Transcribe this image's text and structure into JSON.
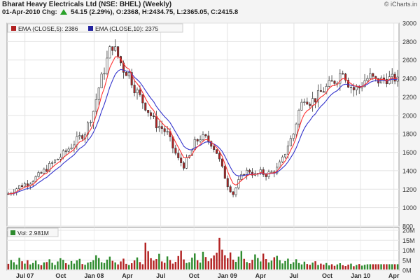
{
  "header": {
    "title": "Bharat Heavy Electricals Ltd (NSE: BHEL) (Weekly)",
    "brand": "© iCharts.in",
    "date_label": "01-Apr-2010 Chg:",
    "change": "54.15 (2.29%),",
    "ohlc": "O:2368, H:2434.75, L:2365.05, C:2415.8"
  },
  "colors": {
    "up_candle": "#ffffff",
    "down_candle": "#b22222",
    "ema5": "#ff3333",
    "ema10": "#3333cc",
    "volume_bar": "#2e8b2e",
    "volume_bar_down": "#b22222",
    "change_arrow": "#2aa12a"
  },
  "chart_data": [
    {
      "type": "candlestick",
      "title": "Bharat Heavy Electricals Ltd (NSE: BHEL) (Weekly)",
      "legend": [
        "EMA (CLOSE,5): 2386",
        "EMA (CLOSE,10): 2375"
      ],
      "legend_placement": "top-left",
      "x_ticks": [
        "Jul 07",
        "Oct",
        "Jan 08",
        "Apr",
        "Jul",
        "Oct",
        "Jan 09",
        "Apr",
        "Jul",
        "Oct",
        "Jan 10",
        "Apr"
      ],
      "ylim": [
        800,
        3000
      ],
      "y_ticks": [
        800,
        1000,
        1200,
        1400,
        1600,
        1800,
        2000,
        2200,
        2400,
        2600,
        2800,
        3000
      ],
      "grid": true,
      "close_path": [
        [
          0,
          1150
        ],
        [
          4,
          1230
        ],
        [
          8,
          1280
        ],
        [
          12,
          1370
        ],
        [
          16,
          1480
        ],
        [
          20,
          1580
        ],
        [
          24,
          1700
        ],
        [
          28,
          1820
        ],
        [
          31,
          2050
        ],
        [
          33,
          2300
        ],
        [
          35,
          2500
        ],
        [
          37,
          2700
        ],
        [
          38,
          2760
        ],
        [
          40,
          2640
        ],
        [
          42,
          2500
        ],
        [
          44,
          2450
        ],
        [
          46,
          2300
        ],
        [
          48,
          2200
        ],
        [
          50,
          2100
        ],
        [
          52,
          2000
        ],
        [
          54,
          1900
        ],
        [
          56,
          1860
        ],
        [
          58,
          1800
        ],
        [
          60,
          1650
        ],
        [
          62,
          1520
        ],
        [
          64,
          1460
        ],
        [
          66,
          1550
        ],
        [
          68,
          1700
        ],
        [
          70,
          1760
        ],
        [
          72,
          1750
        ],
        [
          74,
          1700
        ],
        [
          76,
          1600
        ],
        [
          78,
          1420
        ],
        [
          80,
          1250
        ],
        [
          82,
          1150
        ],
        [
          84,
          1280
        ],
        [
          86,
          1380
        ],
        [
          88,
          1400
        ],
        [
          90,
          1350
        ],
        [
          92,
          1380
        ],
        [
          94,
          1360
        ],
        [
          96,
          1380
        ],
        [
          98,
          1420
        ],
        [
          100,
          1520
        ],
        [
          102,
          1680
        ],
        [
          104,
          1800
        ],
        [
          106,
          2050
        ],
        [
          108,
          2200
        ],
        [
          110,
          2150
        ],
        [
          112,
          2180
        ],
        [
          114,
          2250
        ],
        [
          116,
          2300
        ],
        [
          118,
          2350
        ],
        [
          120,
          2400
        ],
        [
          122,
          2500
        ],
        [
          124,
          2350
        ],
        [
          126,
          2280
        ],
        [
          128,
          2300
        ],
        [
          130,
          2380
        ],
        [
          132,
          2420
        ],
        [
          134,
          2370
        ],
        [
          136,
          2380
        ],
        [
          138,
          2400
        ],
        [
          140,
          2390
        ],
        [
          142,
          2415.8
        ]
      ]
    },
    {
      "type": "bar",
      "legend": [
        "Vol: 2.981M"
      ],
      "ylim": [
        0,
        20
      ],
      "y_ticks": [
        "0M",
        "5M",
        "10M",
        "15M",
        "20M"
      ],
      "values": [
        3.2,
        5.1,
        4.0,
        2.8,
        6.2,
        4.5,
        3.3,
        5.0,
        2.9,
        3.6,
        4.8,
        3.0,
        2.5,
        3.9,
        4.1,
        5.5,
        3.7,
        2.6,
        4.4,
        6.0,
        5.2,
        3.5,
        2.8,
        4.6,
        3.3,
        4.9,
        5.7,
        3.1,
        2.7,
        3.8,
        4.2,
        5.0,
        7.5,
        6.1,
        4.0,
        3.6,
        5.3,
        6.8,
        4.7,
        3.9,
        2.9,
        4.4,
        5.8,
        3.2,
        2.6,
        3.5,
        4.9,
        6.4,
        4.1,
        3.0,
        13.8,
        9.5,
        6.0,
        4.8,
        5.6,
        8.2,
        4.4,
        3.7,
        6.9,
        5.1,
        3.3,
        4.2,
        7.1,
        9.8,
        5.4,
        3.6,
        4.0,
        6.3,
        8.4,
        5.0,
        3.8,
        9.2,
        6.6,
        4.5,
        5.9,
        7.4,
        8.8,
        16.2,
        10.3,
        7.5,
        6.0,
        8.9,
        5.3,
        4.2,
        6.8,
        9.6,
        5.7,
        4.1,
        3.5,
        5.2,
        7.9,
        6.1,
        4.4,
        8.3,
        5.6,
        3.9,
        4.8,
        6.5,
        7.2,
        5.0,
        3.4,
        4.6,
        5.8,
        3.2,
        4.0,
        5.5,
        3.6,
        2.9,
        4.3,
        3.1,
        2.7,
        3.8,
        4.5,
        2.6,
        3.3,
        2.8,
        3.6,
        2.4,
        3.0,
        2.2,
        2.9,
        3.5,
        2.5,
        2.1,
        2.8,
        3.3,
        2.0,
        2.6,
        3.1,
        2.3,
        2.7,
        2.981
      ]
    }
  ]
}
